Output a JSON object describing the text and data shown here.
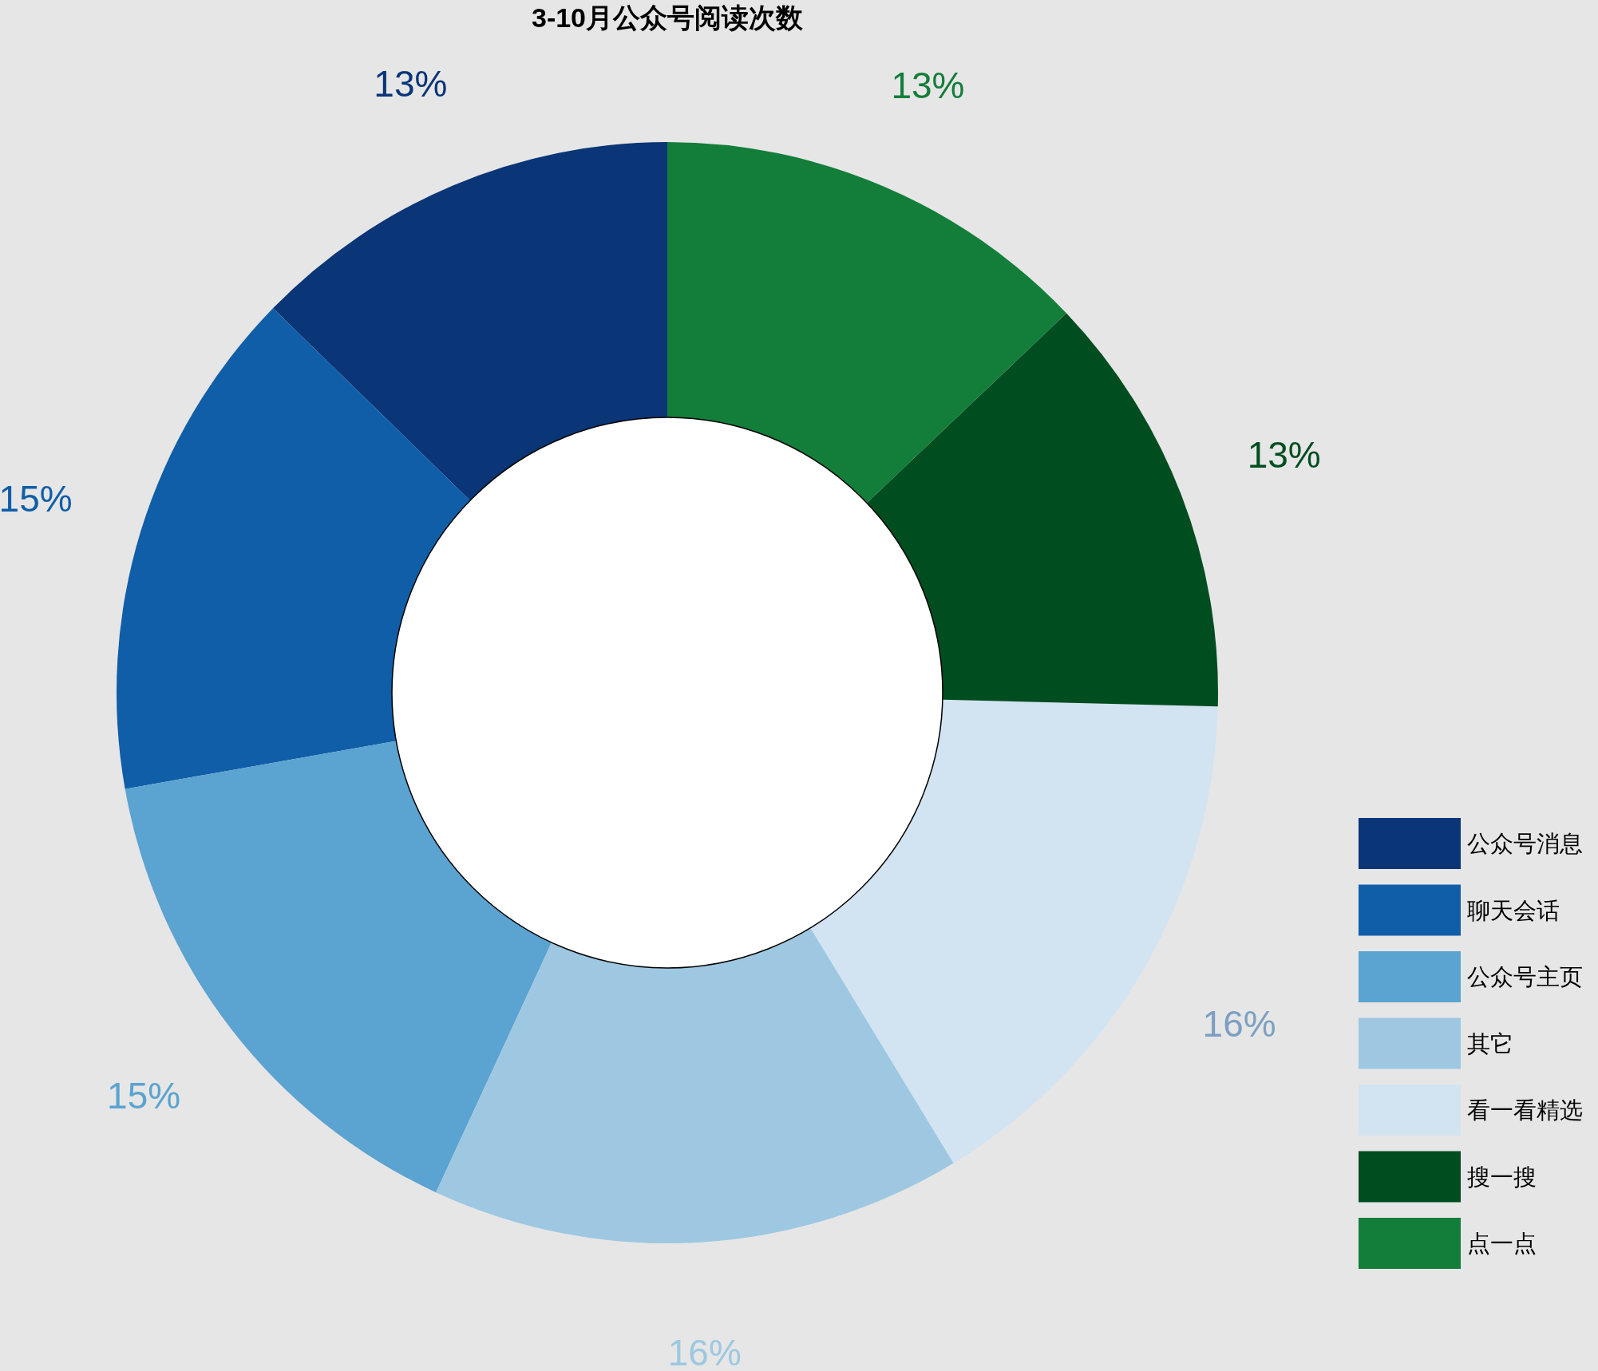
{
  "chart_data": {
    "type": "donut",
    "title": "3-10月公众号阅读次数",
    "categories": [
      "公众号消息",
      "聊天会话",
      "公众号主页",
      "其它",
      "看一看精选",
      "搜一搜",
      "点一点"
    ],
    "values": [
      12.7,
      15.1,
      15.3,
      15.6,
      15.9,
      12.5,
      12.9
    ],
    "value_labels": [
      "13%",
      "15%",
      "15%",
      "16%",
      "16%",
      "13%",
      "13%"
    ],
    "colors": [
      "#0a3577",
      "#105ea8",
      "#5ba3d0",
      "#9ec8e1",
      "#d2e3f2",
      "#004d20",
      "#137d3a"
    ],
    "legend": "bottom right"
  }
}
